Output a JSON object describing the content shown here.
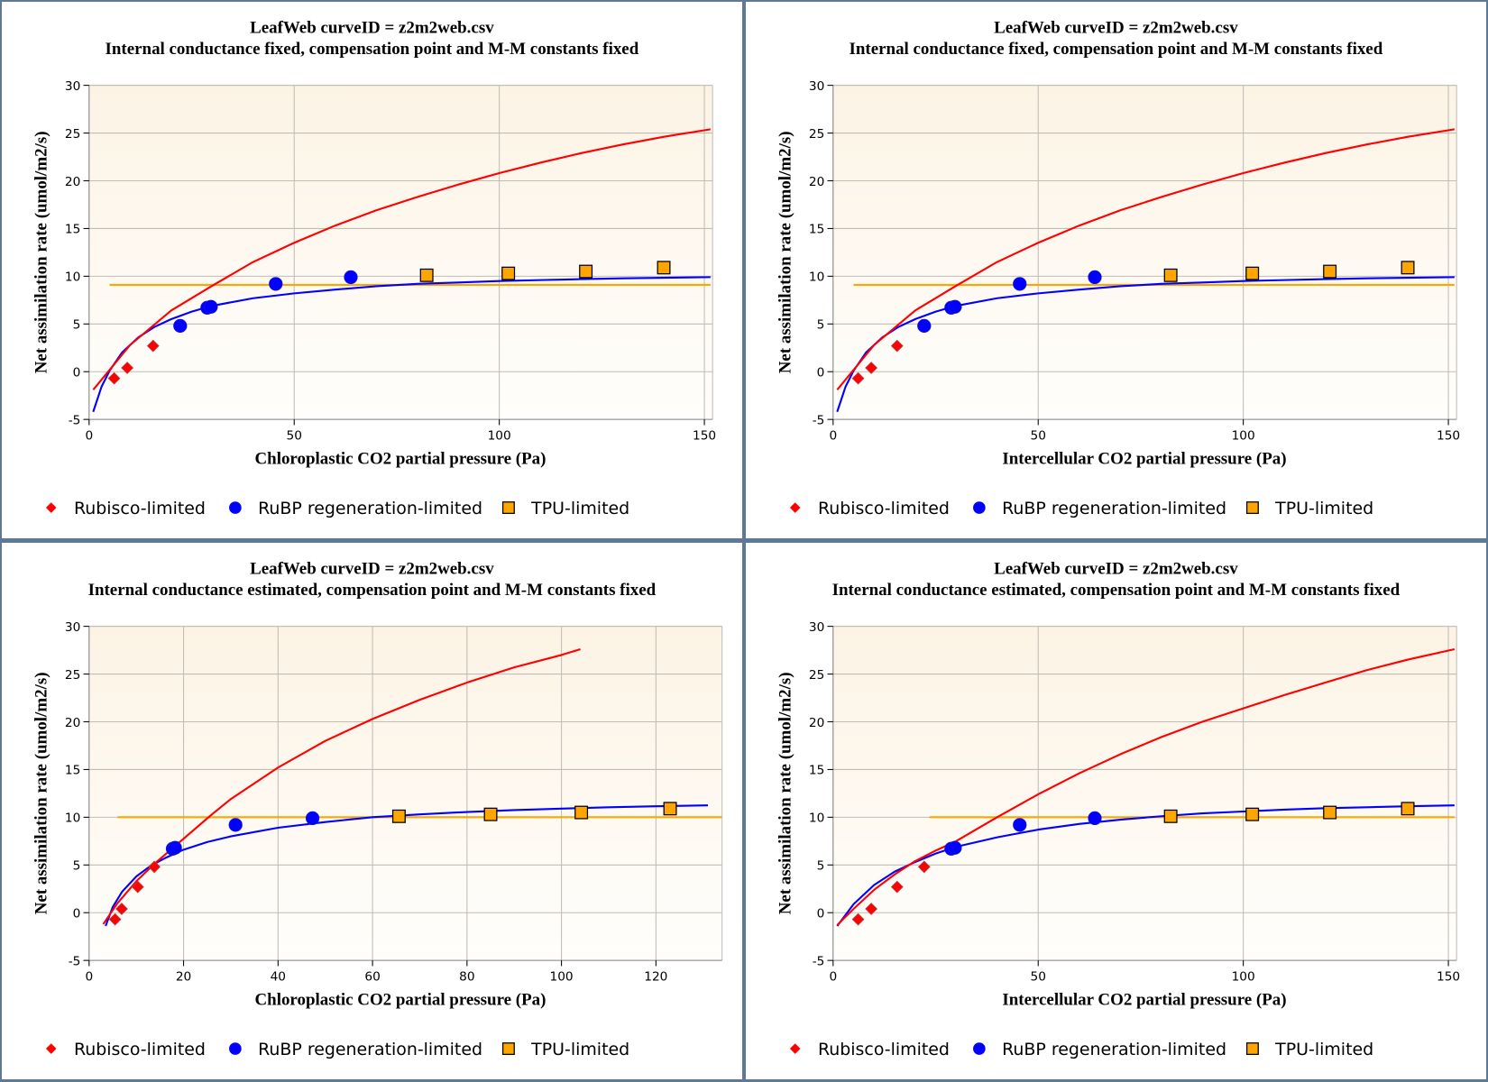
{
  "colors": {
    "border": "#5e7898",
    "rubisco": "#ff0000",
    "rubp": "#0000ff",
    "tpu": "#ffa500",
    "plot_top": "#fcf3e4",
    "plot_bottom": "#fffefc",
    "grid": "#c0bcb6",
    "axis": "#808080"
  },
  "legend": [
    {
      "key": "rubisco",
      "label": "Rubisco-limited",
      "marker": "diamond-icon"
    },
    {
      "key": "rubp",
      "label": "RuBP regeneration-limited",
      "marker": "circle-icon"
    },
    {
      "key": "tpu",
      "label": "TPU-limited",
      "marker": "square-icon"
    }
  ],
  "chart_data": [
    {
      "type": "scatter",
      "title": "LeafWeb curveID = z2m2web.csv",
      "subtitle": "Internal conductance fixed, compensation point and M-M constants fixed",
      "xlabel": "Chloroplastic CO2 partial pressure (Pa)",
      "ylabel": "Net assimilation rate (umol/m2/s)",
      "xlim": [
        0,
        152
      ],
      "ylim": [
        -5,
        30
      ],
      "xticks": [
        0,
        50,
        100,
        150
      ],
      "yticks": [
        -5,
        0,
        5,
        10,
        15,
        20,
        25,
        30
      ],
      "grid": true,
      "legend_position": "bottom",
      "points": {
        "rubisco": [
          [
            6.1,
            -0.7
          ],
          [
            9.3,
            0.4
          ],
          [
            15.6,
            2.7
          ]
        ],
        "rubp": [
          [
            22.2,
            4.8
          ],
          [
            28.8,
            6.7
          ],
          [
            29.7,
            6.8
          ],
          [
            45.5,
            9.2
          ],
          [
            63.8,
            9.9
          ]
        ],
        "tpu": [
          [
            82.3,
            10.1
          ],
          [
            102.2,
            10.3
          ],
          [
            121.1,
            10.5
          ],
          [
            140.1,
            10.9
          ]
        ]
      },
      "curves": {
        "rubisco": [
          [
            1,
            -1.9
          ],
          [
            10,
            2.8
          ],
          [
            20,
            6.4
          ],
          [
            30,
            9.0
          ],
          [
            40,
            11.5
          ],
          [
            50,
            13.5
          ],
          [
            60,
            15.3
          ],
          [
            70,
            16.9
          ],
          [
            80,
            18.3
          ],
          [
            90,
            19.6
          ],
          [
            100,
            20.8
          ],
          [
            110,
            21.9
          ],
          [
            120,
            22.9
          ],
          [
            130,
            23.8
          ],
          [
            140,
            24.6
          ],
          [
            151.5,
            25.4
          ]
        ],
        "rubp": [
          [
            1,
            -4.2
          ],
          [
            3,
            -1.6
          ],
          [
            5,
            0.1
          ],
          [
            8,
            2.0
          ],
          [
            12,
            3.6
          ],
          [
            16,
            4.7
          ],
          [
            20,
            5.5
          ],
          [
            25,
            6.3
          ],
          [
            30,
            6.9
          ],
          [
            40,
            7.7
          ],
          [
            50,
            8.2
          ],
          [
            60,
            8.6
          ],
          [
            70,
            8.95
          ],
          [
            80,
            9.2
          ],
          [
            90,
            9.35
          ],
          [
            100,
            9.5
          ],
          [
            110,
            9.6
          ],
          [
            120,
            9.7
          ],
          [
            130,
            9.78
          ],
          [
            140,
            9.84
          ],
          [
            151.5,
            9.9
          ]
        ],
        "tpu": [
          [
            5,
            9.1
          ],
          [
            151.5,
            9.1
          ]
        ]
      }
    },
    {
      "type": "scatter",
      "title": "LeafWeb curveID = z2m2web.csv",
      "subtitle": "Internal conductance fixed, compensation point and M-M constants fixed",
      "xlabel": "Intercellular CO2 partial pressure (Pa)",
      "ylabel": "Net assimilation rate (umol/m2/s)",
      "xlim": [
        0,
        152
      ],
      "ylim": [
        -5,
        30
      ],
      "xticks": [
        0,
        50,
        100,
        150
      ],
      "yticks": [
        -5,
        0,
        5,
        10,
        15,
        20,
        25,
        30
      ],
      "grid": true,
      "legend_position": "bottom",
      "points": {
        "rubisco": [
          [
            6.1,
            -0.7
          ],
          [
            9.3,
            0.4
          ],
          [
            15.6,
            2.7
          ]
        ],
        "rubp": [
          [
            22.2,
            4.8
          ],
          [
            28.8,
            6.7
          ],
          [
            29.7,
            6.8
          ],
          [
            45.5,
            9.2
          ],
          [
            63.8,
            9.9
          ]
        ],
        "tpu": [
          [
            82.3,
            10.1
          ],
          [
            102.2,
            10.3
          ],
          [
            121.1,
            10.5
          ],
          [
            140.1,
            10.9
          ]
        ]
      },
      "curves": {
        "rubisco": [
          [
            1,
            -1.9
          ],
          [
            10,
            2.8
          ],
          [
            20,
            6.4
          ],
          [
            30,
            9.0
          ],
          [
            40,
            11.5
          ],
          [
            50,
            13.5
          ],
          [
            60,
            15.3
          ],
          [
            70,
            16.9
          ],
          [
            80,
            18.3
          ],
          [
            90,
            19.6
          ],
          [
            100,
            20.8
          ],
          [
            110,
            21.9
          ],
          [
            120,
            22.9
          ],
          [
            130,
            23.8
          ],
          [
            140,
            24.6
          ],
          [
            151.5,
            25.4
          ]
        ],
        "rubp": [
          [
            1,
            -4.2
          ],
          [
            3,
            -1.6
          ],
          [
            5,
            0.1
          ],
          [
            8,
            2.0
          ],
          [
            12,
            3.6
          ],
          [
            16,
            4.7
          ],
          [
            20,
            5.5
          ],
          [
            25,
            6.3
          ],
          [
            30,
            6.9
          ],
          [
            40,
            7.7
          ],
          [
            50,
            8.2
          ],
          [
            60,
            8.6
          ],
          [
            70,
            8.95
          ],
          [
            80,
            9.2
          ],
          [
            90,
            9.35
          ],
          [
            100,
            9.5
          ],
          [
            110,
            9.6
          ],
          [
            120,
            9.7
          ],
          [
            130,
            9.78
          ],
          [
            140,
            9.84
          ],
          [
            151.5,
            9.9
          ]
        ],
        "tpu": [
          [
            5,
            9.1
          ],
          [
            151.5,
            9.1
          ]
        ]
      }
    },
    {
      "type": "scatter",
      "title": "LeafWeb curveID = z2m2web.csv",
      "subtitle": "Internal conductance estimated, compensation point and M-M constants fixed",
      "xlabel": "Chloroplastic CO2 partial pressure (Pa)",
      "ylabel": "Net assimilation rate (umol/m2/s)",
      "xlim": [
        0,
        134
      ],
      "ylim": [
        -5,
        30
      ],
      "xticks": [
        0,
        20,
        40,
        60,
        80,
        100,
        120
      ],
      "yticks": [
        -5,
        0,
        5,
        10,
        15,
        20,
        25,
        30
      ],
      "grid": true,
      "legend_position": "bottom",
      "points": {
        "rubisco": [
          [
            5.5,
            -0.7
          ],
          [
            6.9,
            0.4
          ],
          [
            10.3,
            2.7
          ],
          [
            13.8,
            4.8
          ]
        ],
        "rubp": [
          [
            17.7,
            6.7
          ],
          [
            18.2,
            6.8
          ],
          [
            31.0,
            9.2
          ],
          [
            47.3,
            9.9
          ]
        ],
        "tpu": [
          [
            65.6,
            10.1
          ],
          [
            85.0,
            10.3
          ],
          [
            104.2,
            10.5
          ],
          [
            123.0,
            10.9
          ]
        ]
      },
      "curves": {
        "rubisco": [
          [
            3,
            -1.2
          ],
          [
            6,
            1.0
          ],
          [
            10,
            3.3
          ],
          [
            14,
            5.2
          ],
          [
            18,
            6.9
          ],
          [
            22,
            8.6
          ],
          [
            26,
            10.3
          ],
          [
            30,
            11.9
          ],
          [
            40,
            15.2
          ],
          [
            50,
            18.0
          ],
          [
            60,
            20.3
          ],
          [
            70,
            22.3
          ],
          [
            80,
            24.1
          ],
          [
            90,
            25.7
          ],
          [
            100,
            27.0
          ],
          [
            104,
            27.6
          ]
        ],
        "rubp": [
          [
            3.5,
            -1.4
          ],
          [
            5,
            0.6
          ],
          [
            7,
            2.2
          ],
          [
            10,
            3.8
          ],
          [
            13,
            4.9
          ],
          [
            16,
            5.7
          ],
          [
            20,
            6.6
          ],
          [
            25,
            7.4
          ],
          [
            30,
            8.0
          ],
          [
            40,
            8.9
          ],
          [
            50,
            9.5
          ],
          [
            60,
            10.0
          ],
          [
            70,
            10.3
          ],
          [
            80,
            10.55
          ],
          [
            90,
            10.75
          ],
          [
            100,
            10.9
          ],
          [
            110,
            11.05
          ],
          [
            120,
            11.15
          ],
          [
            131,
            11.25
          ]
        ],
        "tpu": [
          [
            6,
            10.0
          ],
          [
            134,
            10.0
          ]
        ]
      }
    },
    {
      "type": "scatter",
      "title": "LeafWeb curveID = z2m2web.csv",
      "subtitle": "Internal conductance estimated, compensation point and M-M constants fixed",
      "xlabel": "Intercellular CO2 partial pressure (Pa)",
      "ylabel": "Net assimilation rate (umol/m2/s)",
      "xlim": [
        0,
        152
      ],
      "ylim": [
        -5,
        30
      ],
      "xticks": [
        0,
        50,
        100,
        150
      ],
      "yticks": [
        -5,
        0,
        5,
        10,
        15,
        20,
        25,
        30
      ],
      "grid": true,
      "legend_position": "bottom",
      "points": {
        "rubisco": [
          [
            6.1,
            -0.7
          ],
          [
            9.3,
            0.4
          ],
          [
            15.6,
            2.7
          ],
          [
            22.2,
            4.8
          ]
        ],
        "rubp": [
          [
            28.8,
            6.7
          ],
          [
            29.7,
            6.8
          ],
          [
            45.5,
            9.2
          ],
          [
            63.8,
            9.9
          ]
        ],
        "tpu": [
          [
            82.3,
            10.1
          ],
          [
            102.2,
            10.3
          ],
          [
            121.1,
            10.5
          ],
          [
            140.1,
            10.9
          ]
        ]
      },
      "curves": {
        "rubisco": [
          [
            1,
            -1.3
          ],
          [
            5,
            0.4
          ],
          [
            10,
            2.4
          ],
          [
            15,
            4.0
          ],
          [
            20,
            5.4
          ],
          [
            25,
            6.5
          ],
          [
            30,
            7.5
          ],
          [
            40,
            10.0
          ],
          [
            50,
            12.4
          ],
          [
            60,
            14.6
          ],
          [
            70,
            16.6
          ],
          [
            80,
            18.4
          ],
          [
            90,
            20.0
          ],
          [
            100,
            21.4
          ],
          [
            110,
            22.8
          ],
          [
            120,
            24.1
          ],
          [
            130,
            25.4
          ],
          [
            140,
            26.5
          ],
          [
            151.5,
            27.6
          ]
        ],
        "rubp": [
          [
            1,
            -1.4
          ],
          [
            5,
            0.9
          ],
          [
            10,
            2.9
          ],
          [
            15,
            4.3
          ],
          [
            20,
            5.3
          ],
          [
            25,
            6.2
          ],
          [
            30,
            6.9
          ],
          [
            40,
            7.9
          ],
          [
            50,
            8.7
          ],
          [
            60,
            9.3
          ],
          [
            70,
            9.75
          ],
          [
            80,
            10.1
          ],
          [
            90,
            10.4
          ],
          [
            100,
            10.6
          ],
          [
            110,
            10.8
          ],
          [
            120,
            10.95
          ],
          [
            130,
            11.05
          ],
          [
            140,
            11.15
          ],
          [
            151.5,
            11.25
          ]
        ],
        "tpu": [
          [
            23.5,
            10.0
          ],
          [
            151.5,
            10.0
          ]
        ]
      }
    }
  ]
}
